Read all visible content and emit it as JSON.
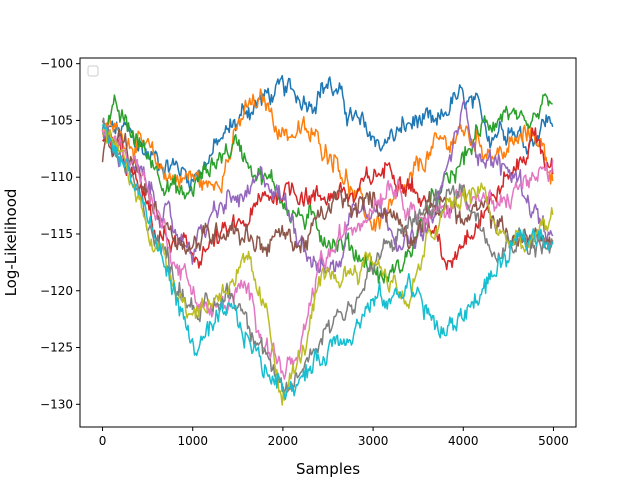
{
  "chart_data": {
    "type": "line",
    "title": "",
    "xlabel": "Samples",
    "ylabel": "Log-Likelihood",
    "xlim": [
      -250,
      5250
    ],
    "ylim": [
      -132,
      -99.5
    ],
    "xticks": [
      0,
      1000,
      2000,
      3000,
      4000,
      5000
    ],
    "yticks": [
      -100,
      -105,
      -110,
      -115,
      -120,
      -125,
      -130
    ],
    "xtick_labels": [
      "0",
      "1000",
      "2000",
      "3000",
      "4000",
      "5000"
    ],
    "ytick_labels": [
      "−100",
      "−105",
      "−110",
      "−115",
      "−120",
      "−125",
      "−130"
    ],
    "grid": false,
    "legend": {
      "placement": "upper-left",
      "entries": []
    },
    "noise_amplitude": 0.9,
    "series": [
      {
        "color": "#1f77b4",
        "points": [
          [
            0,
            -106
          ],
          [
            250,
            -106
          ],
          [
            500,
            -108
          ],
          [
            800,
            -109
          ],
          [
            1000,
            -110
          ],
          [
            1200,
            -108
          ],
          [
            1400,
            -106
          ],
          [
            1600,
            -104
          ],
          [
            1800,
            -103
          ],
          [
            2000,
            -102.5
          ],
          [
            2300,
            -103
          ],
          [
            2500,
            -101.5
          ],
          [
            2700,
            -104
          ],
          [
            2900,
            -106
          ],
          [
            3100,
            -107
          ],
          [
            3300,
            -106
          ],
          [
            3500,
            -105
          ],
          [
            3700,
            -106
          ],
          [
            3900,
            -103
          ],
          [
            4100,
            -104
          ],
          [
            4300,
            -106
          ],
          [
            4500,
            -105
          ],
          [
            4700,
            -107
          ],
          [
            4900,
            -105
          ],
          [
            5000,
            -105
          ]
        ]
      },
      {
        "color": "#ff7f0e",
        "points": [
          [
            0,
            -106
          ],
          [
            200,
            -106
          ],
          [
            400,
            -107
          ],
          [
            600,
            -109
          ],
          [
            800,
            -110
          ],
          [
            1000,
            -110
          ],
          [
            1200,
            -111
          ],
          [
            1400,
            -108
          ],
          [
            1600,
            -104
          ],
          [
            1800,
            -103.5
          ],
          [
            2000,
            -106
          ],
          [
            2200,
            -106
          ],
          [
            2400,
            -107
          ],
          [
            2600,
            -108
          ],
          [
            2800,
            -112
          ],
          [
            3000,
            -114
          ],
          [
            3200,
            -113
          ],
          [
            3400,
            -111
          ],
          [
            3600,
            -108
          ],
          [
            3800,
            -107
          ],
          [
            4000,
            -106
          ],
          [
            4200,
            -107
          ],
          [
            4400,
            -108
          ],
          [
            4600,
            -107
          ],
          [
            4800,
            -106
          ],
          [
            5000,
            -110
          ]
        ]
      },
      {
        "color": "#2ca02c",
        "points": [
          [
            0,
            -106
          ],
          [
            100,
            -104
          ],
          [
            300,
            -106
          ],
          [
            500,
            -108
          ],
          [
            700,
            -110
          ],
          [
            900,
            -112
          ],
          [
            1100,
            -110
          ],
          [
            1300,
            -108
          ],
          [
            1500,
            -107
          ],
          [
            1700,
            -109
          ],
          [
            1900,
            -111
          ],
          [
            2100,
            -113
          ],
          [
            2300,
            -114
          ],
          [
            2500,
            -115
          ],
          [
            2700,
            -116
          ],
          [
            2900,
            -117
          ],
          [
            3100,
            -119
          ],
          [
            3300,
            -118
          ],
          [
            3500,
            -115
          ],
          [
            3700,
            -112
          ],
          [
            3900,
            -110
          ],
          [
            4100,
            -107
          ],
          [
            4300,
            -105
          ],
          [
            4500,
            -104
          ],
          [
            4700,
            -107
          ],
          [
            4900,
            -104
          ],
          [
            5000,
            -103
          ]
        ]
      },
      {
        "color": "#d62728",
        "points": [
          [
            0,
            -107
          ],
          [
            200,
            -108
          ],
          [
            400,
            -111
          ],
          [
            600,
            -115
          ],
          [
            800,
            -116
          ],
          [
            1000,
            -117
          ],
          [
            1200,
            -116
          ],
          [
            1400,
            -115
          ],
          [
            1600,
            -114
          ],
          [
            1800,
            -112
          ],
          [
            2000,
            -111
          ],
          [
            2200,
            -111
          ],
          [
            2400,
            -112
          ],
          [
            2600,
            -111
          ],
          [
            2800,
            -112
          ],
          [
            3000,
            -110
          ],
          [
            3200,
            -109
          ],
          [
            3400,
            -110
          ],
          [
            3600,
            -113
          ],
          [
            3800,
            -118
          ],
          [
            4000,
            -115
          ],
          [
            4200,
            -113
          ],
          [
            4400,
            -111
          ],
          [
            4600,
            -109
          ],
          [
            4800,
            -106
          ],
          [
            5000,
            -110
          ]
        ]
      },
      {
        "color": "#9467bd",
        "points": [
          [
            0,
            -106
          ],
          [
            200,
            -108
          ],
          [
            400,
            -110
          ],
          [
            600,
            -112
          ],
          [
            800,
            -115
          ],
          [
            1000,
            -116
          ],
          [
            1200,
            -114
          ],
          [
            1400,
            -112
          ],
          [
            1600,
            -112
          ],
          [
            1800,
            -110
          ],
          [
            2000,
            -112
          ],
          [
            2200,
            -115
          ],
          [
            2400,
            -118
          ],
          [
            2600,
            -118
          ],
          [
            2800,
            -112
          ],
          [
            3000,
            -112
          ],
          [
            3200,
            -114
          ],
          [
            3400,
            -116
          ],
          [
            3600,
            -115
          ],
          [
            3800,
            -110
          ],
          [
            4000,
            -104
          ],
          [
            4200,
            -108
          ],
          [
            4400,
            -109
          ],
          [
            4600,
            -110
          ],
          [
            4800,
            -113
          ],
          [
            5000,
            -116
          ]
        ]
      },
      {
        "color": "#8c564b",
        "points": [
          [
            0,
            -108
          ],
          [
            200,
            -107
          ],
          [
            400,
            -110
          ],
          [
            600,
            -113
          ],
          [
            800,
            -115
          ],
          [
            1000,
            -116
          ],
          [
            1200,
            -115
          ],
          [
            1400,
            -114
          ],
          [
            1600,
            -115
          ],
          [
            1800,
            -116
          ],
          [
            2000,
            -115
          ],
          [
            2200,
            -116
          ],
          [
            2400,
            -114
          ],
          [
            2600,
            -112
          ],
          [
            2800,
            -113
          ],
          [
            3000,
            -112
          ],
          [
            3200,
            -113
          ],
          [
            3400,
            -115
          ],
          [
            3600,
            -113
          ],
          [
            3800,
            -112
          ],
          [
            4000,
            -114
          ],
          [
            4200,
            -113
          ],
          [
            4400,
            -114
          ],
          [
            4600,
            -116
          ],
          [
            4800,
            -115
          ],
          [
            5000,
            -116
          ]
        ]
      },
      {
        "color": "#e377c2",
        "points": [
          [
            0,
            -106
          ],
          [
            200,
            -107
          ],
          [
            400,
            -109
          ],
          [
            600,
            -113
          ],
          [
            800,
            -117
          ],
          [
            1000,
            -120
          ],
          [
            1200,
            -122
          ],
          [
            1400,
            -121
          ],
          [
            1600,
            -120
          ],
          [
            1800,
            -124
          ],
          [
            2000,
            -127
          ],
          [
            2200,
            -126
          ],
          [
            2400,
            -118
          ],
          [
            2600,
            -116
          ],
          [
            2800,
            -114
          ],
          [
            3000,
            -112
          ],
          [
            3200,
            -110
          ],
          [
            3400,
            -112
          ],
          [
            3600,
            -114
          ],
          [
            3800,
            -113
          ],
          [
            4000,
            -111
          ],
          [
            4200,
            -112
          ],
          [
            4400,
            -113
          ],
          [
            4600,
            -111
          ],
          [
            4800,
            -110
          ],
          [
            5000,
            -110
          ]
        ]
      },
      {
        "color": "#7f7f7f",
        "points": [
          [
            0,
            -106
          ],
          [
            200,
            -108
          ],
          [
            400,
            -112
          ],
          [
            600,
            -115
          ],
          [
            800,
            -119
          ],
          [
            1000,
            -121
          ],
          [
            1200,
            -122
          ],
          [
            1400,
            -120
          ],
          [
            1600,
            -122
          ],
          [
            1800,
            -125
          ],
          [
            2000,
            -130
          ],
          [
            2200,
            -127
          ],
          [
            2400,
            -124
          ],
          [
            2600,
            -122
          ],
          [
            2800,
            -121
          ],
          [
            3000,
            -118
          ],
          [
            3200,
            -116
          ],
          [
            3400,
            -114
          ],
          [
            3600,
            -113
          ],
          [
            3800,
            -112
          ],
          [
            4000,
            -111
          ],
          [
            4200,
            -114
          ],
          [
            4400,
            -116
          ],
          [
            4600,
            -115
          ],
          [
            4800,
            -116
          ],
          [
            5000,
            -116
          ]
        ]
      },
      {
        "color": "#bcbd22",
        "points": [
          [
            0,
            -106
          ],
          [
            200,
            -108
          ],
          [
            400,
            -112
          ],
          [
            600,
            -116
          ],
          [
            800,
            -119
          ],
          [
            1000,
            -122
          ],
          [
            1200,
            -121
          ],
          [
            1400,
            -119
          ],
          [
            1600,
            -118
          ],
          [
            1800,
            -122
          ],
          [
            2000,
            -129
          ],
          [
            2200,
            -126
          ],
          [
            2400,
            -120
          ],
          [
            2600,
            -119
          ],
          [
            2800,
            -118
          ],
          [
            3000,
            -117
          ],
          [
            3200,
            -119
          ],
          [
            3400,
            -121
          ],
          [
            3600,
            -116
          ],
          [
            3800,
            -113
          ],
          [
            4000,
            -112
          ],
          [
            4200,
            -111
          ],
          [
            4400,
            -115
          ],
          [
            4600,
            -116
          ],
          [
            4800,
            -116
          ],
          [
            5000,
            -113
          ]
        ]
      },
      {
        "color": "#17becf",
        "points": [
          [
            0,
            -106
          ],
          [
            200,
            -108
          ],
          [
            400,
            -111
          ],
          [
            600,
            -116
          ],
          [
            800,
            -120
          ],
          [
            1000,
            -125
          ],
          [
            1200,
            -124
          ],
          [
            1400,
            -122
          ],
          [
            1600,
            -124
          ],
          [
            1800,
            -127
          ],
          [
            2000,
            -128
          ],
          [
            2200,
            -128
          ],
          [
            2400,
            -126
          ],
          [
            2600,
            -124
          ],
          [
            2800,
            -123
          ],
          [
            3000,
            -121
          ],
          [
            3200,
            -121
          ],
          [
            3400,
            -119
          ],
          [
            3600,
            -122
          ],
          [
            3800,
            -124
          ],
          [
            4000,
            -122
          ],
          [
            4200,
            -120
          ],
          [
            4400,
            -118
          ],
          [
            4600,
            -116
          ],
          [
            4800,
            -115
          ],
          [
            5000,
            -115
          ]
        ]
      }
    ]
  }
}
